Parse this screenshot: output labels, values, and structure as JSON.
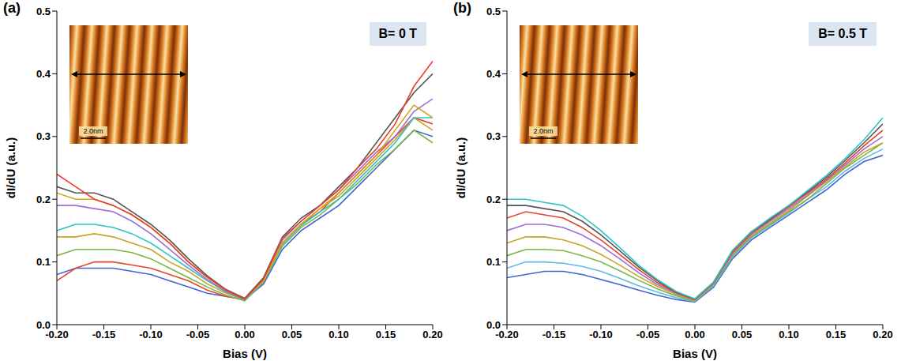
{
  "chart_data": [
    {
      "type": "line",
      "panel_label": "(a)",
      "annotations": [
        "B= 0 T"
      ],
      "inset_label": "2.0nm",
      "xlabel": "Bias (V)",
      "ylabel": "dI/dU (a.u.)",
      "x": [
        -0.2,
        -0.18,
        -0.16,
        -0.14,
        -0.12,
        -0.1,
        -0.08,
        -0.06,
        -0.04,
        -0.02,
        0,
        0.02,
        0.04,
        0.06,
        0.08,
        0.1,
        0.12,
        0.14,
        0.16,
        0.18,
        0.2
      ],
      "xlim": [
        -0.2,
        0.2
      ],
      "xticks": [
        {
          "value": -0.2,
          "label": "-0.20"
        },
        {
          "value": -0.15,
          "label": "-0.15"
        },
        {
          "value": -0.1,
          "label": "-0.10"
        },
        {
          "value": -0.05,
          "label": "-0.05"
        },
        {
          "value": 0,
          "label": "0.00"
        },
        {
          "value": 0.05,
          "label": "0.05"
        },
        {
          "value": 0.1,
          "label": "0.10"
        },
        {
          "value": 0.15,
          "label": "0.15"
        },
        {
          "value": 0.2,
          "label": "0.20"
        }
      ],
      "ylim": [
        0,
        0.5
      ],
      "yticks": [
        {
          "value": 0,
          "label": "0.0"
        },
        0.1,
        0.2,
        0.3,
        0.4,
        0.5
      ],
      "series": [
        {
          "color": "#3a66d6",
          "values": [
            0.08,
            0.09,
            0.09,
            0.09,
            0.085,
            0.08,
            0.07,
            0.06,
            0.05,
            0.045,
            0.04,
            0.065,
            0.12,
            0.15,
            0.17,
            0.19,
            0.22,
            0.25,
            0.28,
            0.31,
            0.3
          ]
        },
        {
          "color": "#e8412c",
          "values": [
            0.07,
            0.09,
            0.1,
            0.1,
            0.095,
            0.09,
            0.08,
            0.07,
            0.055,
            0.045,
            0.04,
            0.07,
            0.13,
            0.16,
            0.18,
            0.21,
            0.24,
            0.27,
            0.3,
            0.33,
            0.32
          ]
        },
        {
          "color": "#7ab648",
          "values": [
            0.11,
            0.12,
            0.12,
            0.12,
            0.115,
            0.105,
            0.09,
            0.075,
            0.06,
            0.047,
            0.038,
            0.068,
            0.125,
            0.155,
            0.175,
            0.2,
            0.225,
            0.255,
            0.28,
            0.31,
            0.29
          ]
        },
        {
          "color": "#c9a227",
          "values": [
            0.14,
            0.14,
            0.145,
            0.14,
            0.13,
            0.12,
            0.1,
            0.085,
            0.065,
            0.05,
            0.04,
            0.072,
            0.13,
            0.16,
            0.185,
            0.205,
            0.235,
            0.265,
            0.295,
            0.33,
            0.31
          ]
        },
        {
          "color": "#2ec4c4",
          "values": [
            0.15,
            0.16,
            0.16,
            0.155,
            0.145,
            0.13,
            0.11,
            0.09,
            0.07,
            0.052,
            0.04,
            0.07,
            0.128,
            0.158,
            0.18,
            0.2,
            0.23,
            0.26,
            0.29,
            0.33,
            0.33
          ]
        },
        {
          "color": "#9a6fd6",
          "values": [
            0.19,
            0.19,
            0.185,
            0.18,
            0.165,
            0.145,
            0.12,
            0.095,
            0.072,
            0.053,
            0.041,
            0.074,
            0.135,
            0.165,
            0.19,
            0.215,
            0.245,
            0.275,
            0.3,
            0.34,
            0.36
          ]
        },
        {
          "color": "#d9a21a",
          "values": [
            0.21,
            0.2,
            0.2,
            0.19,
            0.175,
            0.155,
            0.13,
            0.1,
            0.075,
            0.055,
            0.042,
            0.07,
            0.13,
            0.16,
            0.185,
            0.21,
            0.24,
            0.27,
            0.31,
            0.35,
            0.33
          ]
        },
        {
          "color": "#555555",
          "values": [
            0.22,
            0.21,
            0.21,
            0.2,
            0.18,
            0.16,
            0.135,
            0.105,
            0.078,
            0.056,
            0.042,
            0.075,
            0.14,
            0.17,
            0.19,
            0.22,
            0.25,
            0.29,
            0.33,
            0.37,
            0.4
          ]
        },
        {
          "color": "#f03c2a",
          "values": [
            0.24,
            0.22,
            0.2,
            0.19,
            0.175,
            0.155,
            0.13,
            0.1,
            0.076,
            0.055,
            0.041,
            0.073,
            0.138,
            0.165,
            0.19,
            0.215,
            0.25,
            0.28,
            0.32,
            0.38,
            0.42
          ]
        }
      ]
    },
    {
      "type": "line",
      "panel_label": "(b)",
      "annotations": [
        "B= 0.5 T"
      ],
      "inset_label": "2.0nm",
      "xlabel": "Bias (V)",
      "ylabel": "dI/dU (a.u.)",
      "x": [
        -0.2,
        -0.18,
        -0.16,
        -0.14,
        -0.12,
        -0.1,
        -0.08,
        -0.06,
        -0.04,
        -0.02,
        0,
        0.02,
        0.04,
        0.06,
        0.08,
        0.1,
        0.12,
        0.14,
        0.16,
        0.18,
        0.2
      ],
      "xlim": [
        -0.2,
        0.2
      ],
      "xticks": [
        {
          "value": -0.2,
          "label": "-0.20"
        },
        {
          "value": -0.15,
          "label": "-0.15"
        },
        {
          "value": -0.1,
          "label": "-0.10"
        },
        {
          "value": -0.05,
          "label": "-0.05"
        },
        {
          "value": 0,
          "label": "0.00"
        },
        {
          "value": 0.05,
          "label": "0.05"
        },
        {
          "value": 0.1,
          "label": "0.10"
        },
        {
          "value": 0.15,
          "label": "0.15"
        },
        {
          "value": 0.2,
          "label": "0.20"
        }
      ],
      "ylim": [
        0,
        0.5
      ],
      "yticks": [
        {
          "value": 0,
          "label": "0.0"
        },
        0.1,
        0.2,
        0.3,
        0.4,
        0.5
      ],
      "series": [
        {
          "color": "#3a66d6",
          "values": [
            0.075,
            0.08,
            0.085,
            0.085,
            0.08,
            0.072,
            0.064,
            0.055,
            0.047,
            0.04,
            0.036,
            0.06,
            0.105,
            0.135,
            0.155,
            0.175,
            0.195,
            0.215,
            0.24,
            0.26,
            0.27
          ]
        },
        {
          "color": "#63b8e8",
          "values": [
            0.09,
            0.1,
            0.1,
            0.098,
            0.093,
            0.085,
            0.074,
            0.062,
            0.052,
            0.043,
            0.037,
            0.062,
            0.108,
            0.138,
            0.158,
            0.178,
            0.2,
            0.22,
            0.245,
            0.265,
            0.28
          ]
        },
        {
          "color": "#7ab648",
          "values": [
            0.11,
            0.12,
            0.12,
            0.118,
            0.11,
            0.1,
            0.086,
            0.071,
            0.057,
            0.046,
            0.038,
            0.064,
            0.11,
            0.14,
            0.16,
            0.18,
            0.2,
            0.225,
            0.25,
            0.27,
            0.29
          ]
        },
        {
          "color": "#c9a227",
          "values": [
            0.13,
            0.14,
            0.14,
            0.135,
            0.126,
            0.112,
            0.095,
            0.077,
            0.061,
            0.048,
            0.039,
            0.065,
            0.112,
            0.142,
            0.162,
            0.182,
            0.205,
            0.228,
            0.252,
            0.275,
            0.29
          ]
        },
        {
          "color": "#9a6fd6",
          "values": [
            0.15,
            0.16,
            0.16,
            0.155,
            0.143,
            0.126,
            0.105,
            0.083,
            0.064,
            0.05,
            0.04,
            0.066,
            0.114,
            0.144,
            0.165,
            0.185,
            0.207,
            0.23,
            0.255,
            0.28,
            0.3
          ]
        },
        {
          "color": "#e8412c",
          "values": [
            0.17,
            0.18,
            0.175,
            0.17,
            0.155,
            0.135,
            0.112,
            0.088,
            0.067,
            0.051,
            0.04,
            0.067,
            0.116,
            0.146,
            0.167,
            0.188,
            0.21,
            0.232,
            0.258,
            0.285,
            0.31
          ]
        },
        {
          "color": "#555555",
          "values": [
            0.19,
            0.19,
            0.185,
            0.18,
            0.165,
            0.143,
            0.118,
            0.092,
            0.07,
            0.052,
            0.041,
            0.068,
            0.118,
            0.148,
            0.168,
            0.19,
            0.212,
            0.235,
            0.262,
            0.29,
            0.32
          ]
        },
        {
          "color": "#2ec4c4",
          "values": [
            0.2,
            0.2,
            0.195,
            0.19,
            0.173,
            0.15,
            0.123,
            0.095,
            0.072,
            0.053,
            0.041,
            0.068,
            0.118,
            0.148,
            0.17,
            0.19,
            0.214,
            0.238,
            0.265,
            0.295,
            0.33
          ]
        }
      ]
    }
  ]
}
